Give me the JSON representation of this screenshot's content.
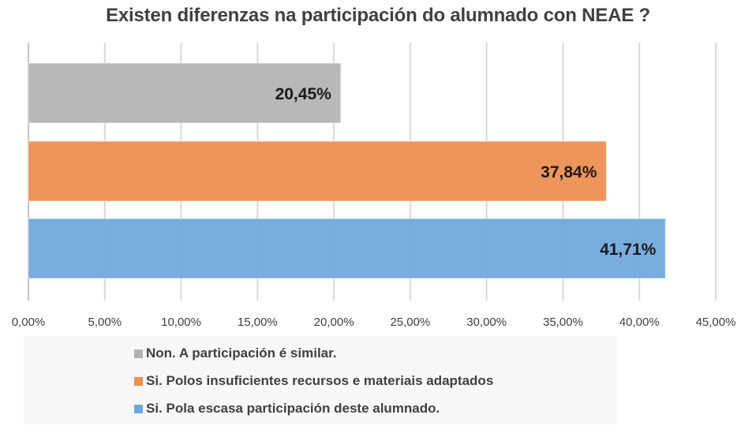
{
  "chart_data": {
    "type": "bar",
    "orientation": "horizontal",
    "title": "Existen diferenzas na participación do alumnado con NEAE ?",
    "xlabel": "",
    "ylabel": "",
    "xlim": [
      0,
      45
    ],
    "grid": true,
    "legend_position": "bottom",
    "x_ticks": [
      "0,00%",
      "5,00%",
      "10,00%",
      "15,00%",
      "20,00%",
      "25,00%",
      "30,00%",
      "35,00%",
      "40,00%",
      "45,00%"
    ],
    "x_tick_values": [
      0,
      5,
      10,
      15,
      20,
      25,
      30,
      35,
      40,
      45
    ],
    "series": [
      {
        "name": "Non. A participación é similar.",
        "value": 20.45,
        "label": "20,45%",
        "color": "#b3b3b3"
      },
      {
        "name": "Si. Polos insuficientes recursos e materiais adaptados",
        "value": 37.84,
        "label": "37,84%",
        "color": "#ed8d4f"
      },
      {
        "name": "Si. Pola escasa participación deste alumnado.",
        "value": 41.71,
        "label": "41,71%",
        "color": "#6fa7db"
      }
    ]
  }
}
